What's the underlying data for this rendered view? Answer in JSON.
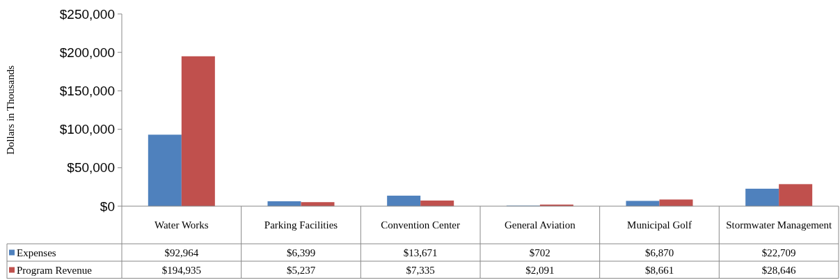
{
  "chart_data": {
    "type": "bar",
    "ylabel": "Dollars in Thousands",
    "categories": [
      "Water Works",
      "Parking Facilities",
      "Convention Center",
      "General Aviation",
      "Municipal Golf",
      "Stormwater Management"
    ],
    "series": [
      {
        "name": "Expenses",
        "color": "#4f81bd",
        "values": [
          92964,
          6399,
          13671,
          702,
          6870,
          22709
        ],
        "value_labels": [
          "$92,964",
          "$6,399",
          "$13,671",
          "$702",
          "$6,870",
          "$22,709"
        ]
      },
      {
        "name": "Program Revenue",
        "color": "#c0504d",
        "values": [
          194935,
          5237,
          7335,
          2091,
          8661,
          28646
        ],
        "value_labels": [
          "$194,935",
          "$5,237",
          "$7,335",
          "$2,091",
          "$8,661",
          "$28,646"
        ]
      }
    ],
    "ylim": [
      0,
      250000
    ],
    "yticks": [
      {
        "value": 0,
        "label": "$0"
      },
      {
        "value": 50000,
        "label": "$50,000"
      },
      {
        "value": 100000,
        "label": "$100,000"
      },
      {
        "value": 150000,
        "label": "$150,000"
      },
      {
        "value": 200000,
        "label": "$200,000"
      },
      {
        "value": 250000,
        "label": "$250,000"
      }
    ],
    "grid": false,
    "legend": "bottom left"
  }
}
